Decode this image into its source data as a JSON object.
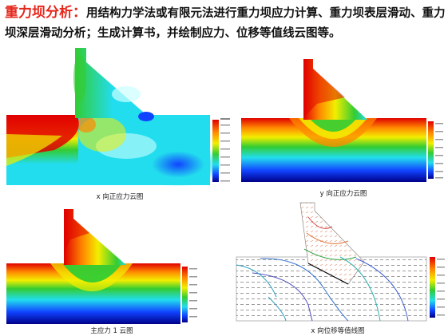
{
  "header": {
    "title_red": "重力坝分析：",
    "title_text": "用结构力学法或有限元法进行重力坝应力计算、重力坝表层滑动、重力坝深层滑动分析；生成计算书，并绘制应力、位移等值线云图等。"
  },
  "panels": [
    {
      "caption": "x 向正应力云图"
    },
    {
      "caption": "y 向正应力云图"
    },
    {
      "caption": "主应力 1 云图"
    },
    {
      "caption": "x 向位移等值线图"
    }
  ],
  "colors": {
    "red": "#e00000",
    "orange": "#ff8800",
    "yellow": "#f2ee00",
    "green": "#33cc33",
    "cyan": "#22ddee",
    "blue": "#1144ff",
    "navy": "#000088"
  }
}
